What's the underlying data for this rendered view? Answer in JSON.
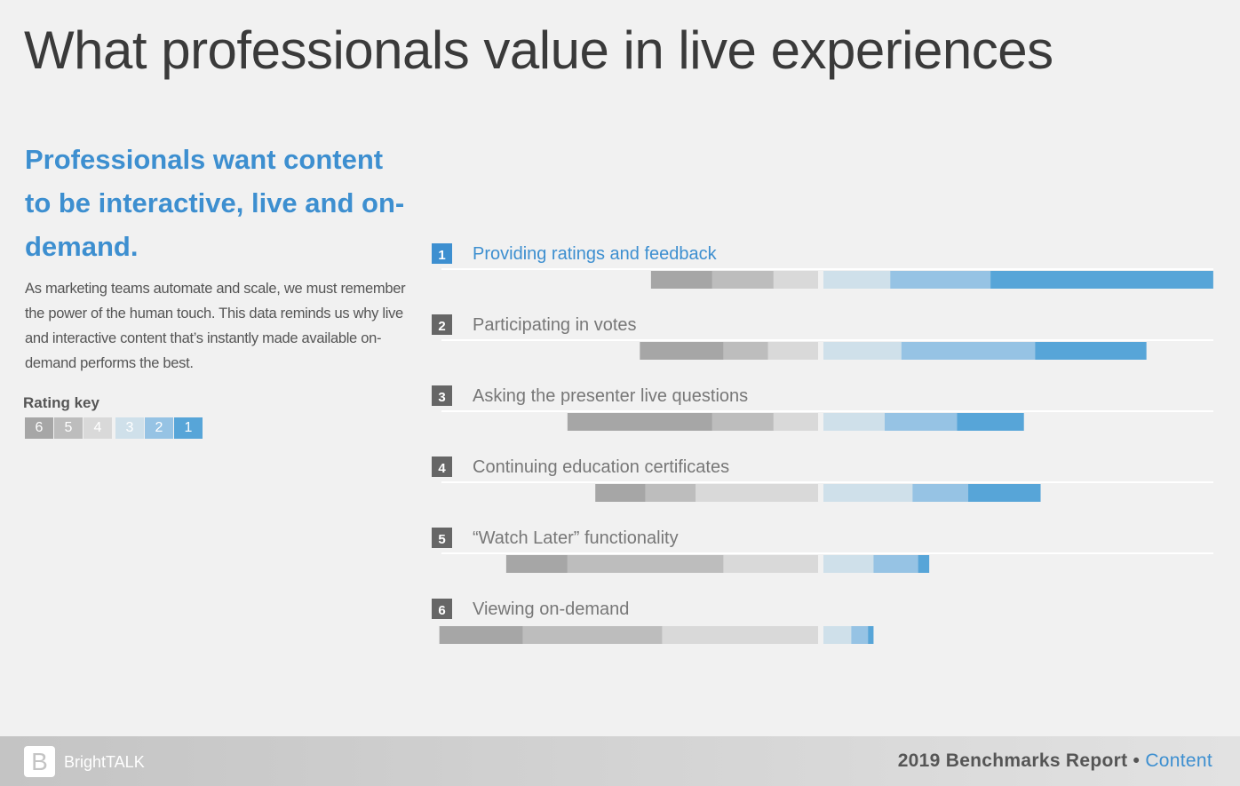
{
  "title": "What professionals value in live experiences",
  "subhead": "Professionals want content to be interactive, live and on-demand.",
  "body": "As marketing teams automate and scale, we must remember the power of the human touch. This data reminds us why live and interactive content that’s instantly made available on-demand performs the best.",
  "rating_key": {
    "label": "Rating key",
    "items": [
      "6",
      "5",
      "4",
      "3",
      "2",
      "1"
    ]
  },
  "colors": {
    "6": "#a6a6a6",
    "5": "#bdbdbd",
    "4": "#d9d9d9",
    "3": "#cfe0ea",
    "2": "#96c3e4",
    "1": "#57a5d8",
    "accent": "#3d8fd0",
    "rank_badge": "#666666"
  },
  "chart_data": {
    "type": "bar",
    "subtype": "diverging-stacked",
    "note_values": "estimated relative shares per rating (no axis printed)",
    "ratings": [
      "6",
      "5",
      "4",
      "3",
      "2",
      "1"
    ],
    "categories": [
      {
        "rank": "1",
        "label": "Providing ratings and feedback",
        "values": {
          "6": 11,
          "5": 11,
          "4": 8,
          "3": 12,
          "2": 18,
          "1": 40
        }
      },
      {
        "rank": "2",
        "label": "Participating in votes",
        "values": {
          "6": 15,
          "5": 8,
          "4": 9,
          "3": 14,
          "2": 24,
          "1": 20
        }
      },
      {
        "rank": "3",
        "label": "Asking the presenter live questions",
        "values": {
          "6": 26,
          "5": 11,
          "4": 8,
          "3": 11,
          "2": 13,
          "1": 12
        }
      },
      {
        "rank": "4",
        "label": "Continuing education certificates",
        "values": {
          "6": 9,
          "5": 9,
          "4": 22,
          "3": 16,
          "2": 10,
          "1": 13
        }
      },
      {
        "rank": "5",
        "label": "“Watch Later” functionality",
        "values": {
          "6": 11,
          "5": 28,
          "4": 17,
          "3": 9,
          "2": 8,
          "1": 2
        }
      },
      {
        "rank": "6",
        "label": "Viewing on-demand",
        "values": {
          "6": 15,
          "5": 25,
          "4": 28,
          "3": 5,
          "2": 3,
          "1": 1
        }
      }
    ]
  },
  "footer": {
    "logo_letter": "B",
    "brand": "BrightTALK",
    "report": "2019 Benchmarks Report",
    "bullet": "•",
    "section": "Content"
  }
}
